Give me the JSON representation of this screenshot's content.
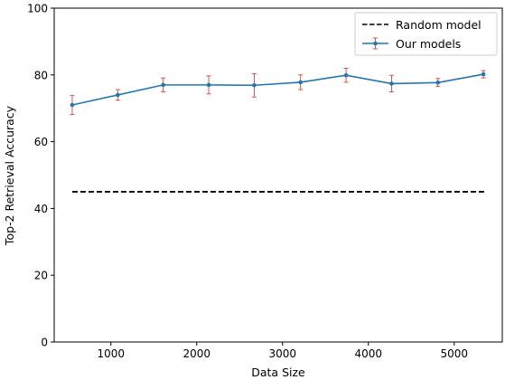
{
  "chart_data": {
    "type": "line",
    "xlabel": "Data Size",
    "ylabel": "Top-2 Retrieval Accuracy",
    "xlim": [
      340,
      5560
    ],
    "ylim": [
      0,
      100
    ],
    "xticks": [
      1000,
      2000,
      3000,
      4000,
      5000
    ],
    "yticks": [
      0,
      20,
      40,
      60,
      80,
      100
    ],
    "grid": false,
    "legend_position": "top-right",
    "series": [
      {
        "name": "Random model",
        "style": "dashed",
        "color": "#000000",
        "x": [
          550,
          5350
        ],
        "y": [
          45,
          45
        ]
      },
      {
        "name": "Our models",
        "style": "solid-with-markers",
        "color": "#1f77b4",
        "errorbar_color": "#d62728",
        "x": [
          550,
          1080,
          1610,
          2140,
          2670,
          3210,
          3740,
          4270,
          4810,
          5340
        ],
        "y": [
          71.0,
          74.0,
          77.0,
          77.0,
          76.9,
          77.8,
          79.9,
          77.4,
          77.7,
          80.2
        ],
        "yerr_low": [
          2.8,
          1.6,
          2.1,
          2.7,
          3.5,
          2.2,
          2.1,
          2.5,
          1.2,
          1.1
        ],
        "yerr_high": [
          2.8,
          1.6,
          2.1,
          2.7,
          3.5,
          2.2,
          2.1,
          2.5,
          1.2,
          1.1
        ]
      }
    ]
  }
}
